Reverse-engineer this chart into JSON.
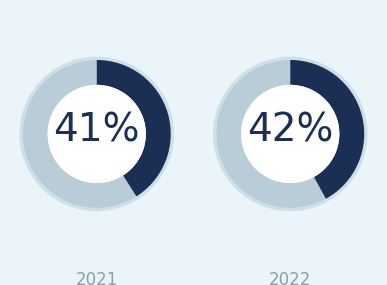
{
  "charts": [
    {
      "year": "2021",
      "pct": 41
    },
    {
      "year": "2022",
      "pct": 42
    }
  ],
  "dark_color": "#1b2f55",
  "light_color": "#b8cdd8",
  "border_color": "#cde0ea",
  "bg_color": "#eaf4f9",
  "text_color": "#1b2f55",
  "label_color": "#8a9fae",
  "pct_fontsize": 28,
  "year_fontsize": 12,
  "start_angle": 90
}
